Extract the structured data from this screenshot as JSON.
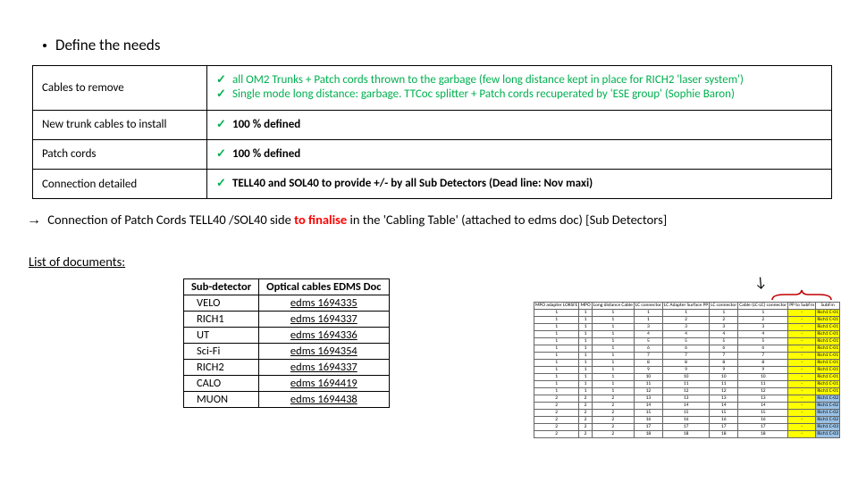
{
  "bullet": {
    "text": "Define the needs"
  },
  "needs_table": {
    "rows": [
      {
        "label": "Cables to remove",
        "items": [
          "all OM2 Trunks + Patch cords thrown to the garbage (few long distance kept in place for RICH2 'laser system')",
          "Single mode long distance: garbage. TTCoc splitter + Patch cords recuperated by 'ESE group' (Sophie Baron)"
        ],
        "items_green": true,
        "bold": [
          false,
          false
        ]
      },
      {
        "label": "New trunk cables to install",
        "items": [
          "100 % defined"
        ],
        "items_green": false,
        "bold": [
          true
        ]
      },
      {
        "label": "Patch cords",
        "items": [
          "100 % defined"
        ],
        "items_green": false,
        "bold": [
          true
        ]
      },
      {
        "label": "Connection detailed",
        "items": [
          "TELL40 and SOL40 to provide +/- by all Sub Detectors (Dead line: Nov maxi)"
        ],
        "items_green": false,
        "bold": [
          true
        ]
      }
    ]
  },
  "arrow_line": {
    "prefix": "Connection of Patch Cords TELL40 /SOL40 side ",
    "red": "to finalise",
    "suffix": " in the 'Cabling Table' (attached to edms doc) [Sub Detectors]"
  },
  "docs_heading": "List of documents:",
  "docs_table": {
    "headers": [
      "Sub-detector",
      "Optical cables EDMS Doc"
    ],
    "rows": [
      [
        "VELO",
        "edms 1694335"
      ],
      [
        "RICH1",
        "edms 1694337"
      ],
      [
        "UT",
        "edms 1694336"
      ],
      [
        "Sci-Fi",
        "edms 1694354"
      ],
      [
        "RICH2",
        "edms 1694337"
      ],
      [
        "CALO",
        "edms 1694419"
      ],
      [
        "MUON",
        "edms 1694438"
      ]
    ]
  },
  "preview": {
    "headers": [
      "MPO adapter LORSFE",
      "MPO",
      "Long distance Cable",
      "LC connector",
      "LC Adapter Surface PP",
      "LC connector",
      "Cable (LC-LC) connector",
      "PP to SubFm",
      "SubFm"
    ],
    "rows": [
      [
        "1",
        "1",
        "1",
        "1",
        "1",
        "1",
        "1",
        "-",
        "Rich1 C-01"
      ],
      [
        "1",
        "1",
        "1",
        "1",
        "2",
        "2",
        "2",
        "-",
        "Rich1 C-01"
      ],
      [
        "1",
        "1",
        "1",
        "3",
        "3",
        "3",
        "3",
        "-",
        "Rich1 C-01"
      ],
      [
        "1",
        "1",
        "1",
        "4",
        "4",
        "4",
        "4",
        "-",
        "Rich1 C-01"
      ],
      [
        "1",
        "1",
        "1",
        "5",
        "5",
        "5",
        "5",
        "-",
        "Rich1 C-01"
      ],
      [
        "1",
        "1",
        "1",
        "6",
        "6",
        "6",
        "6",
        "-",
        "Rich1 C-01"
      ],
      [
        "1",
        "1",
        "1",
        "7",
        "7",
        "7",
        "7",
        "-",
        "Rich1 C-01"
      ],
      [
        "1",
        "1",
        "1",
        "8",
        "8",
        "8",
        "8",
        "-",
        "Rich1 C-01"
      ],
      [
        "1",
        "1",
        "1",
        "9",
        "9",
        "9",
        "9",
        "-",
        "Rich1 C-01"
      ],
      [
        "1",
        "1",
        "1",
        "10",
        "10",
        "10",
        "10",
        "-",
        "Rich1 C-01"
      ],
      [
        "1",
        "1",
        "1",
        "11",
        "11",
        "11",
        "11",
        "-",
        "Rich1 C-01"
      ],
      [
        "1",
        "1",
        "1",
        "12",
        "12",
        "12",
        "12",
        "-",
        "Rich1 C-01"
      ],
      [
        "2",
        "2",
        "2",
        "13",
        "13",
        "13",
        "13",
        "-",
        "Rich1 C-02"
      ],
      [
        "2",
        "2",
        "2",
        "14",
        "14",
        "14",
        "14",
        "-",
        "Rich1 C-02"
      ],
      [
        "2",
        "2",
        "2",
        "15",
        "15",
        "15",
        "15",
        "-",
        "Rich1 C-02"
      ],
      [
        "2",
        "2",
        "2",
        "16",
        "16",
        "16",
        "16",
        "-",
        "Rich1 C-02"
      ],
      [
        "2",
        "2",
        "2",
        "17",
        "17",
        "17",
        "17",
        "-",
        "Rich1 C-03"
      ],
      [
        "2",
        "2",
        "2",
        "18",
        "18",
        "18",
        "18",
        "-",
        "Rich1 C-03"
      ]
    ],
    "hl_cols": [
      7,
      8
    ],
    "hl_b_col": 8,
    "hl_b_start_row": 12
  },
  "colors": {
    "check_green": "#00b050",
    "red": "#ff0000",
    "yellow": "#ffff00",
    "blue_cell": "#9bc2e6",
    "brace_red": "#c00000"
  }
}
